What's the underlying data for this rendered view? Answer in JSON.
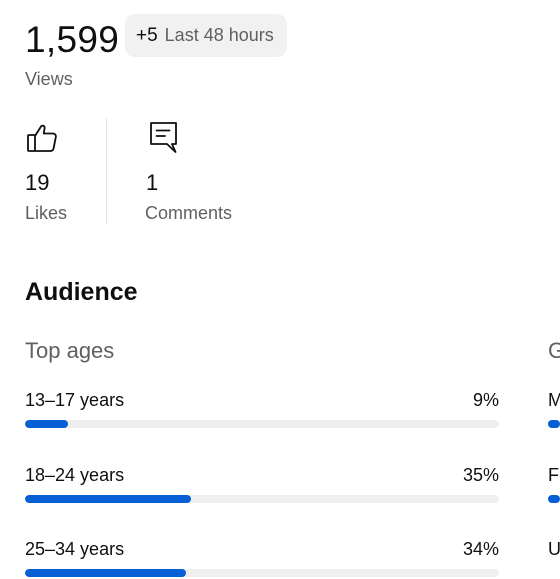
{
  "views": {
    "count": "1,599",
    "label": "Views",
    "delta_value": "+5",
    "delta_label": "Last 48 hours"
  },
  "engagement": {
    "likes": {
      "value": "19",
      "label": "Likes",
      "icon": "thumbs-up-icon"
    },
    "comments": {
      "value": "1",
      "label": "Comments",
      "icon": "comment-icon"
    }
  },
  "audience": {
    "title": "Audience",
    "top_ages": {
      "title": "Top ages",
      "rows": [
        {
          "label": "13–17 years",
          "percent": "9%",
          "fraction": 0.09
        },
        {
          "label": "18–24 years",
          "percent": "35%",
          "fraction": 0.35
        },
        {
          "label": "25–34 years",
          "percent": "34%",
          "fraction": 0.34
        }
      ]
    },
    "gender": {
      "title": "G",
      "rows": [
        {
          "label": "M"
        },
        {
          "label": "F"
        },
        {
          "label": "U"
        }
      ]
    }
  },
  "colors": {
    "accent": "#065fd4",
    "track": "#efefef",
    "secondary_text": "#606060"
  }
}
